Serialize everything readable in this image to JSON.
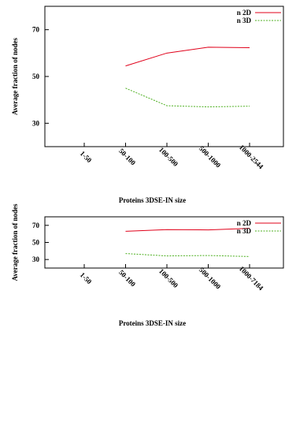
{
  "chart_data": [
    {
      "type": "line",
      "categories": [
        "1-50",
        "50-100",
        "100-500",
        "500-1000",
        "1000-2544"
      ],
      "series": [
        {
          "name": "n 2D",
          "values": [
            null,
            54.5,
            60,
            62.5,
            62.3
          ],
          "color": "#e0001a",
          "dash": "solid"
        },
        {
          "name": "n 3D",
          "values": [
            null,
            45,
            37.5,
            37,
            37.3
          ],
          "color": "#4caf1f",
          "dash": "dotted"
        }
      ],
      "xlabel": "Proteins 3DSE-IN size",
      "ylabel": "Average fraction of nodes",
      "yticks": [
        30,
        50,
        70
      ],
      "ylim": [
        20,
        80
      ],
      "legend": "top-right",
      "grid": false
    },
    {
      "type": "line",
      "categories": [
        "1-50",
        "50-100",
        "100-500",
        "500-1000",
        "1000-7184"
      ],
      "series": [
        {
          "name": "n 2D",
          "values": [
            null,
            63,
            65,
            64.7,
            66.5
          ],
          "color": "#e0001a",
          "dash": "solid"
        },
        {
          "name": "n 3D",
          "values": [
            null,
            37,
            34.2,
            34.7,
            33.5
          ],
          "color": "#4caf1f",
          "dash": "dotted"
        }
      ],
      "xlabel": "Proteins 3DSE-IN size",
      "ylabel": "Average fraction of nodes",
      "yticks": [
        30,
        50,
        70
      ],
      "ylim": [
        20,
        80
      ],
      "legend": "top-right",
      "grid": false
    }
  ]
}
